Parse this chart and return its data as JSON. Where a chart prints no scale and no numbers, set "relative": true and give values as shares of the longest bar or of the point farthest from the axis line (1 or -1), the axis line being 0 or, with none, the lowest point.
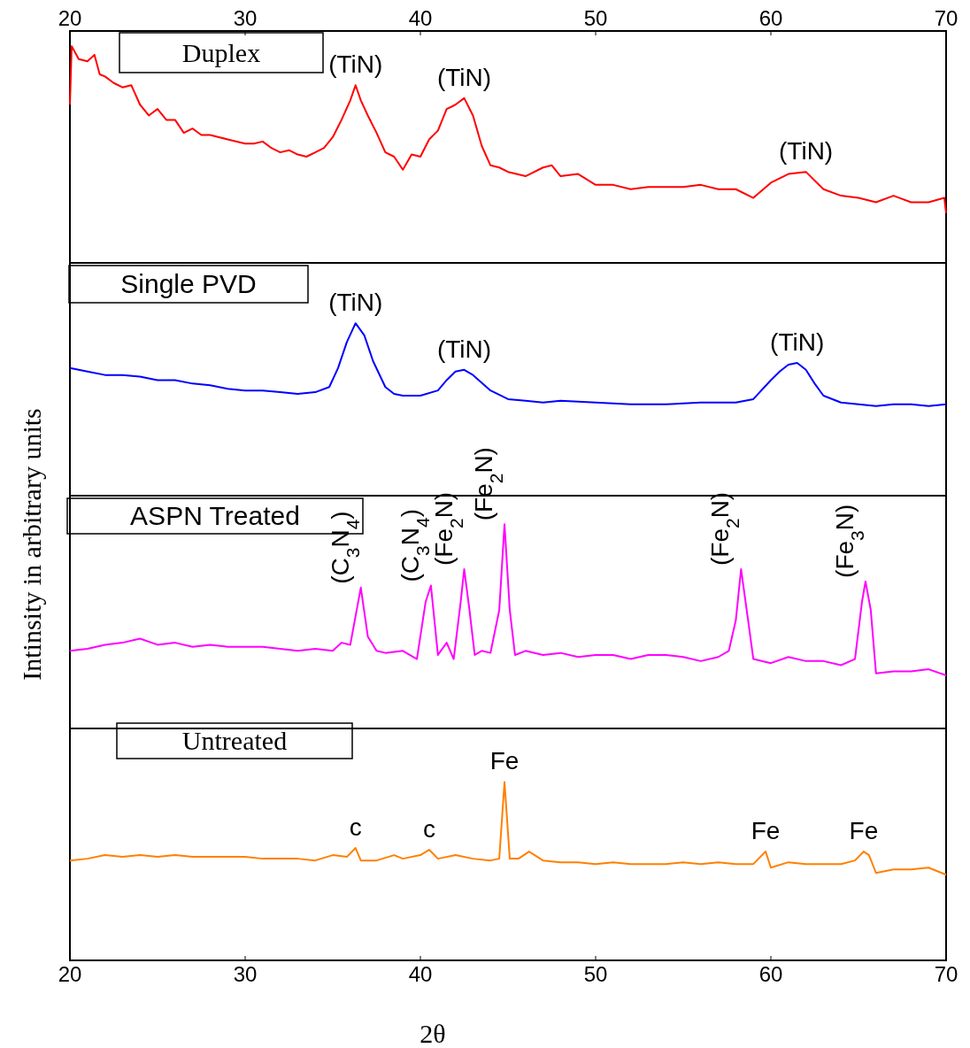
{
  "chart_data": [
    {
      "type": "line",
      "title": "Duplex",
      "ylabel": "Intinsity in arbitrary units",
      "relative": true,
      "xlim": [
        20,
        70
      ],
      "x2lim": [
        20,
        70
      ],
      "x2ticks": [
        20,
        30,
        40,
        50,
        60,
        70
      ],
      "series": [
        {
          "color": "#ff0000",
          "x": [
            20,
            20.1,
            20.5,
            21,
            21.4,
            21.7,
            22,
            22.5,
            23,
            23.5,
            24,
            24.5,
            25,
            25.5,
            26,
            26.5,
            27,
            27.5,
            28,
            28.5,
            29,
            30,
            30.5,
            31,
            31.5,
            32,
            32.5,
            33,
            33.5,
            34,
            34.5,
            35,
            35.5,
            36,
            36.3,
            36.6,
            37,
            37.5,
            38,
            38.5,
            39,
            39.5,
            40,
            40.5,
            41,
            41.5,
            42,
            42.5,
            43,
            43.5,
            44,
            44.5,
            45,
            46,
            47,
            47.5,
            48,
            49,
            50,
            51,
            52,
            53,
            54,
            55,
            56,
            57,
            58,
            59,
            60,
            61,
            62,
            62.5,
            63,
            64,
            65,
            66,
            67,
            68,
            69,
            69.9,
            70
          ],
          "values": [
            0.73,
            1,
            0.94,
            0.93,
            0.96,
            0.87,
            0.86,
            0.83,
            0.81,
            0.82,
            0.73,
            0.68,
            0.71,
            0.66,
            0.66,
            0.6,
            0.62,
            0.59,
            0.59,
            0.58,
            0.57,
            0.55,
            0.55,
            0.56,
            0.53,
            0.51,
            0.52,
            0.5,
            0.49,
            0.51,
            0.53,
            0.58,
            0.66,
            0.75,
            0.82,
            0.75,
            0.68,
            0.6,
            0.51,
            0.49,
            0.43,
            0.5,
            0.49,
            0.57,
            0.61,
            0.71,
            0.73,
            0.76,
            0.68,
            0.54,
            0.45,
            0.44,
            0.42,
            0.4,
            0.44,
            0.45,
            0.4,
            0.41,
            0.36,
            0.36,
            0.34,
            0.35,
            0.35,
            0.35,
            0.36,
            0.34,
            0.34,
            0.3,
            0.37,
            0.41,
            0.42,
            0.38,
            0.34,
            0.31,
            0.3,
            0.28,
            0.31,
            0.28,
            0.28,
            0.3,
            0.23
          ]
        }
      ],
      "annotations": [
        {
          "text": "(TiN)",
          "x": 36.3,
          "y": 0.82
        },
        {
          "text": "(TiN)",
          "x": 42.5,
          "y": 0.76
        },
        {
          "text": "(TiN)",
          "x": 62,
          "y": 0.42
        }
      ]
    },
    {
      "type": "line",
      "title": "Single PVD",
      "relative": true,
      "xlim": [
        20,
        70
      ],
      "series": [
        {
          "color": "#0000ff",
          "x": [
            20,
            21,
            22,
            23,
            24,
            25,
            26,
            27,
            28,
            29,
            30,
            31,
            32,
            33,
            34,
            34.8,
            35.3,
            35.8,
            36.3,
            36.8,
            37.3,
            38,
            38.5,
            39,
            40,
            41,
            41.5,
            42,
            42.5,
            43,
            44,
            45,
            46,
            47,
            48,
            50,
            52,
            54,
            56,
            58,
            59,
            60,
            60.5,
            61,
            61.5,
            62,
            62.5,
            63,
            64,
            65,
            66,
            67,
            68,
            69,
            70
          ],
          "values": [
            0.74,
            0.72,
            0.7,
            0.7,
            0.69,
            0.67,
            0.67,
            0.65,
            0.64,
            0.62,
            0.61,
            0.61,
            0.6,
            0.59,
            0.6,
            0.63,
            0.74,
            0.89,
            1,
            0.93,
            0.78,
            0.63,
            0.59,
            0.58,
            0.58,
            0.61,
            0.67,
            0.72,
            0.73,
            0.7,
            0.61,
            0.56,
            0.55,
            0.54,
            0.55,
            0.54,
            0.53,
            0.53,
            0.54,
            0.54,
            0.56,
            0.67,
            0.72,
            0.76,
            0.77,
            0.73,
            0.65,
            0.58,
            0.54,
            0.53,
            0.52,
            0.53,
            0.53,
            0.52,
            0.53
          ]
        }
      ],
      "annotations": [
        {
          "text": "(TiN)",
          "x": 36.3,
          "y": 1
        },
        {
          "text": "(TiN)",
          "x": 42.5,
          "y": 0.73
        },
        {
          "text": "(TiN)",
          "x": 61.5,
          "y": 0.77
        }
      ]
    },
    {
      "type": "line",
      "title": "ASPN Treated",
      "relative": true,
      "xlim": [
        20,
        70
      ],
      "series": [
        {
          "color": "#ff00ff",
          "x": [
            20,
            21,
            22,
            23,
            24,
            25,
            26,
            27,
            28,
            29,
            30,
            31,
            32,
            33,
            34,
            35,
            35.5,
            36,
            36.6,
            37,
            37.5,
            38,
            39,
            39.8,
            40.3,
            40.6,
            41,
            41.5,
            41.9,
            42.3,
            42.5,
            42.8,
            43.1,
            43.5,
            44,
            44.5,
            44.8,
            45.1,
            45.4,
            46,
            47,
            48,
            49,
            50,
            51,
            52,
            53,
            54,
            55,
            56,
            57,
            57.6,
            58,
            58.3,
            58.7,
            59,
            60,
            61,
            62,
            63,
            64,
            64.8,
            65.2,
            65.4,
            65.7,
            66,
            67,
            68,
            69,
            70
          ],
          "values": [
            0.38,
            0.39,
            0.41,
            0.42,
            0.44,
            0.41,
            0.42,
            0.4,
            0.41,
            0.4,
            0.4,
            0.4,
            0.39,
            0.38,
            0.39,
            0.38,
            0.42,
            0.41,
            0.69,
            0.45,
            0.38,
            0.37,
            0.38,
            0.34,
            0.62,
            0.7,
            0.36,
            0.42,
            0.34,
            0.62,
            0.78,
            0.58,
            0.36,
            0.38,
            0.37,
            0.58,
            1,
            0.58,
            0.36,
            0.38,
            0.36,
            0.37,
            0.35,
            0.36,
            0.36,
            0.34,
            0.36,
            0.36,
            0.35,
            0.33,
            0.35,
            0.38,
            0.53,
            0.78,
            0.53,
            0.34,
            0.32,
            0.35,
            0.33,
            0.33,
            0.31,
            0.34,
            0.62,
            0.72,
            0.58,
            0.27,
            0.28,
            0.28,
            0.29,
            0.26
          ]
        }
      ],
      "annotations": [
        {
          "text": "(C$_{3}$N$_{4}$)",
          "x": 36.6,
          "y": 0.69
        },
        {
          "text": "(C$_{3}$N$_{4}$)",
          "x": 40.6,
          "y": 0.7
        },
        {
          "text": "(Fe$_{2}$N)",
          "x": 42.5,
          "y": 0.78
        },
        {
          "text": "(Fe$_{2}$N)",
          "x": 44.8,
          "y": 1
        },
        {
          "text": "(Fe$_{2}$N)",
          "x": 58.3,
          "y": 0.78
        },
        {
          "text": "(Fe$_{3}$N)",
          "x": 65.4,
          "y": 0.72
        }
      ]
    },
    {
      "type": "line",
      "title": "Untreated",
      "xlabel": "2θ",
      "relative": true,
      "xlim": [
        20,
        70
      ],
      "xticks": [
        20,
        30,
        40,
        50,
        60,
        70
      ],
      "series": [
        {
          "color": "#ff8000",
          "x": [
            20,
            21,
            22,
            23,
            24,
            25,
            26,
            27,
            28,
            29,
            30,
            31,
            32,
            33,
            34,
            35,
            35.8,
            36.3,
            36.6,
            37.5,
            38.5,
            39,
            40,
            40.5,
            41,
            42,
            43,
            44,
            44.5,
            44.8,
            45.1,
            45.6,
            46.2,
            47,
            48,
            49,
            50,
            51,
            52,
            53,
            54,
            55,
            56,
            57,
            58,
            59,
            59.7,
            60,
            61,
            62,
            63,
            64,
            64.8,
            65.3,
            65.6,
            66,
            67,
            68,
            69,
            70
          ],
          "values": [
            0.56,
            0.57,
            0.59,
            0.58,
            0.59,
            0.58,
            0.59,
            0.58,
            0.58,
            0.58,
            0.58,
            0.57,
            0.57,
            0.57,
            0.56,
            0.59,
            0.58,
            0.63,
            0.56,
            0.56,
            0.59,
            0.57,
            0.59,
            0.62,
            0.57,
            0.59,
            0.57,
            0.56,
            0.57,
            1,
            0.57,
            0.57,
            0.61,
            0.56,
            0.55,
            0.55,
            0.54,
            0.55,
            0.54,
            0.54,
            0.54,
            0.55,
            0.54,
            0.55,
            0.54,
            0.54,
            0.61,
            0.52,
            0.55,
            0.54,
            0.54,
            0.54,
            0.56,
            0.61,
            0.59,
            0.49,
            0.51,
            0.51,
            0.52,
            0.48
          ]
        }
      ],
      "annotations": [
        {
          "text": "c",
          "x": 36.3,
          "y": 0.63
        },
        {
          "text": "c",
          "x": 40.5,
          "y": 0.62
        },
        {
          "text": "Fe",
          "x": 44.8,
          "y": 1
        },
        {
          "text": "Fe",
          "x": 59.7,
          "y": 0.61
        },
        {
          "text": "Fe",
          "x": 65.3,
          "y": 0.61
        }
      ]
    }
  ]
}
